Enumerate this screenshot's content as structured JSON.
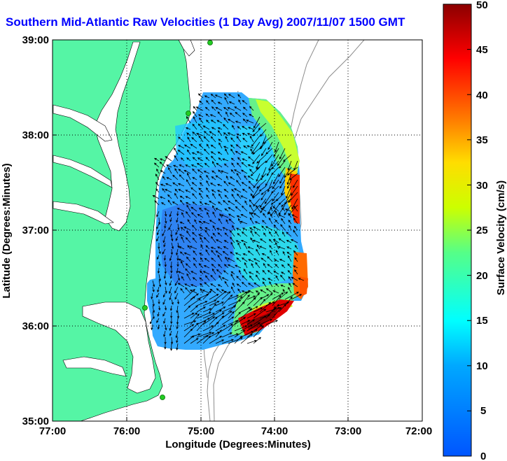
{
  "title": "Southern Mid-Atlantic Raw Velocities (1 Day Avg) 2007/11/07 1500 GMT",
  "map": {
    "xlabel": "Longitude (Degrees:Minutes)",
    "ylabel": "Latitude (Degrees:Minutes)",
    "x_ticks": [
      "77:00",
      "76:00",
      "75:00",
      "74:00",
      "73:00",
      "72:00"
    ],
    "y_ticks": [
      "39:00",
      "38:00",
      "37:00",
      "36:00",
      "35:00"
    ],
    "lon_range": [
      -77,
      -72
    ],
    "lat_range": [
      35,
      39
    ],
    "grid": "dotted",
    "land_color": "#55f5a5",
    "contour_color": "#8c8c8c",
    "site_color": "#22cc22"
  },
  "colorbar": {
    "label": "Surface Velocity (cm/s)",
    "ticks": [
      "50",
      "45",
      "40",
      "35",
      "30",
      "25",
      "20",
      "15",
      "10",
      "5",
      "0"
    ],
    "range": [
      0,
      50
    ],
    "colormap": "jet"
  }
}
